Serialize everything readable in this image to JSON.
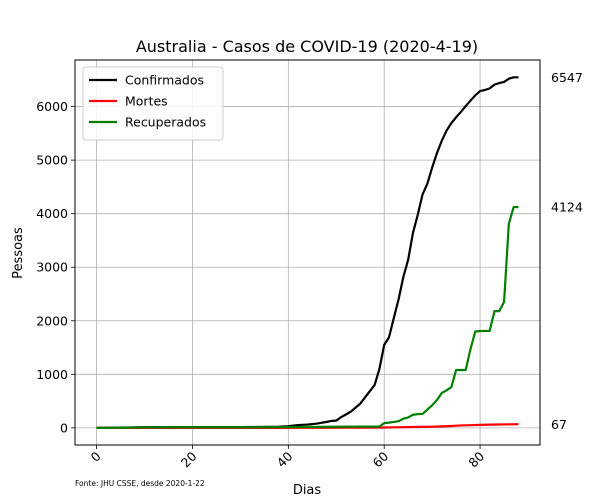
{
  "chart_data": {
    "type": "line",
    "title": "Australia - Casos de COVID-19 (2020-4-19)",
    "xlabel": "Dias",
    "ylabel": "Pessoas",
    "xlim": [
      -4.5,
      92.5
    ],
    "ylim": [
      -320,
      6870
    ],
    "xticks": [
      0,
      20,
      40,
      60,
      80
    ],
    "yticks": [
      0,
      1000,
      2000,
      3000,
      4000,
      5000,
      6000
    ],
    "grid": true,
    "legend_position": "top-left",
    "source_note": "Fonte: JHU CSSE, desde 2020-1-22",
    "series": [
      {
        "name": "Confirmados",
        "color": "#000000",
        "end_label": "6547",
        "points": [
          [
            0,
            0
          ],
          [
            4,
            4
          ],
          [
            10,
            12
          ],
          [
            20,
            15
          ],
          [
            30,
            15
          ],
          [
            36,
            18
          ],
          [
            38,
            22
          ],
          [
            40,
            30
          ],
          [
            42,
            52
          ],
          [
            44,
            62
          ],
          [
            46,
            80
          ],
          [
            48,
            112
          ],
          [
            49,
            130
          ],
          [
            50,
            135
          ],
          [
            51,
            200
          ],
          [
            52,
            250
          ],
          [
            53,
            300
          ],
          [
            54,
            376
          ],
          [
            55,
            452
          ],
          [
            56,
            568
          ],
          [
            57,
            685
          ],
          [
            58,
            800
          ],
          [
            59,
            1100
          ],
          [
            60,
            1550
          ],
          [
            61,
            1690
          ],
          [
            62,
            2050
          ],
          [
            63,
            2400
          ],
          [
            64,
            2820
          ],
          [
            65,
            3140
          ],
          [
            66,
            3640
          ],
          [
            67,
            3980
          ],
          [
            68,
            4360
          ],
          [
            69,
            4560
          ],
          [
            70,
            4860
          ],
          [
            71,
            5130
          ],
          [
            72,
            5360
          ],
          [
            73,
            5550
          ],
          [
            74,
            5690
          ],
          [
            75,
            5800
          ],
          [
            76,
            5900
          ],
          [
            77,
            6010
          ],
          [
            78,
            6110
          ],
          [
            79,
            6210
          ],
          [
            80,
            6290
          ],
          [
            81,
            6310
          ],
          [
            82,
            6340
          ],
          [
            83,
            6410
          ],
          [
            84,
            6440
          ],
          [
            85,
            6460
          ],
          [
            86,
            6520
          ],
          [
            87,
            6547
          ],
          [
            88,
            6547
          ]
        ]
      },
      {
        "name": "Mortes",
        "color": "#ff0000",
        "end_label": "67",
        "points": [
          [
            0,
            0
          ],
          [
            38,
            0
          ],
          [
            42,
            1
          ],
          [
            48,
            2
          ],
          [
            52,
            3
          ],
          [
            56,
            5
          ],
          [
            60,
            7
          ],
          [
            62,
            10
          ],
          [
            64,
            13
          ],
          [
            66,
            16
          ],
          [
            68,
            18
          ],
          [
            70,
            22
          ],
          [
            72,
            28
          ],
          [
            74,
            35
          ],
          [
            76,
            45
          ],
          [
            78,
            50
          ],
          [
            80,
            56
          ],
          [
            82,
            61
          ],
          [
            84,
            63
          ],
          [
            86,
            66
          ],
          [
            88,
            67
          ]
        ]
      },
      {
        "name": "Recuperados",
        "color": "#008000",
        "end_label": "4124",
        "points": [
          [
            0,
            0
          ],
          [
            4,
            2
          ],
          [
            10,
            8
          ],
          [
            20,
            11
          ],
          [
            30,
            11
          ],
          [
            40,
            15
          ],
          [
            50,
            21
          ],
          [
            55,
            24
          ],
          [
            59,
            26
          ],
          [
            60,
            88
          ],
          [
            61,
            98
          ],
          [
            62,
            110
          ],
          [
            63,
            125
          ],
          [
            64,
            171
          ],
          [
            65,
            194
          ],
          [
            66,
            245
          ],
          [
            67,
            257
          ],
          [
            68,
            260
          ],
          [
            69,
            341
          ],
          [
            70,
            422
          ],
          [
            71,
            520
          ],
          [
            72,
            649
          ],
          [
            73,
            701
          ],
          [
            74,
            759
          ],
          [
            75,
            1080
          ],
          [
            76,
            1080
          ],
          [
            77,
            1080
          ],
          [
            78,
            1470
          ],
          [
            79,
            1800
          ],
          [
            80,
            1806
          ],
          [
            81,
            1810
          ],
          [
            82,
            1810
          ],
          [
            83,
            2180
          ],
          [
            84,
            2180
          ],
          [
            85,
            2350
          ],
          [
            86,
            3810
          ],
          [
            87,
            4124
          ],
          [
            88,
            4124
          ]
        ]
      }
    ]
  }
}
